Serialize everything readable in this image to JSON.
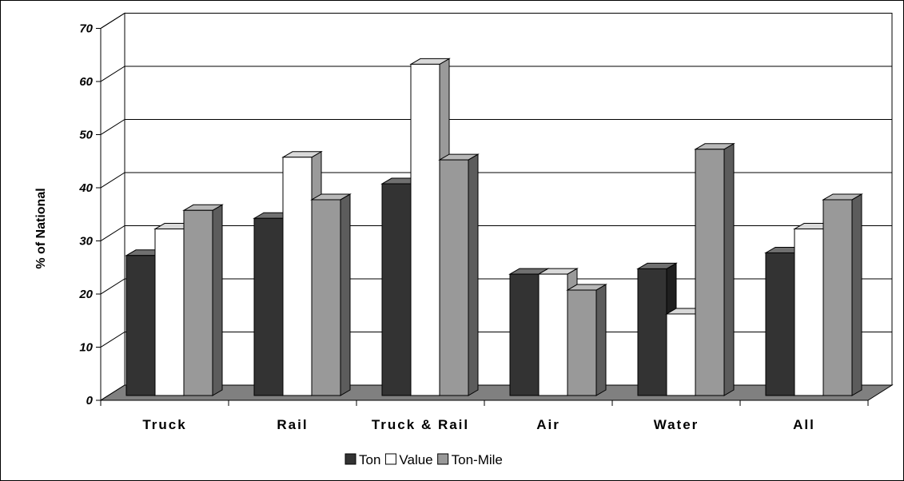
{
  "chart_data": {
    "type": "bar",
    "title": "",
    "xlabel": "",
    "ylabel": "% of National",
    "ylim": [
      0,
      70
    ],
    "yticks": [
      0,
      10,
      20,
      30,
      40,
      50,
      60,
      70
    ],
    "grid": true,
    "legend_position": "bottom",
    "categories": [
      "Truck",
      "Rail",
      "Truck & Rail",
      "Air",
      "Water",
      "All"
    ],
    "series": [
      {
        "name": "Ton",
        "color": "#333333",
        "values": [
          28,
          35,
          41.5,
          24.5,
          25.5,
          28.5
        ]
      },
      {
        "name": "Value",
        "color": "#ffffff",
        "values": [
          33,
          46.5,
          64,
          24.5,
          17,
          33
        ]
      },
      {
        "name": "Ton-Mile",
        "color": "#999999",
        "values": [
          36.5,
          38.5,
          46,
          21.5,
          48,
          38.5
        ]
      }
    ]
  }
}
